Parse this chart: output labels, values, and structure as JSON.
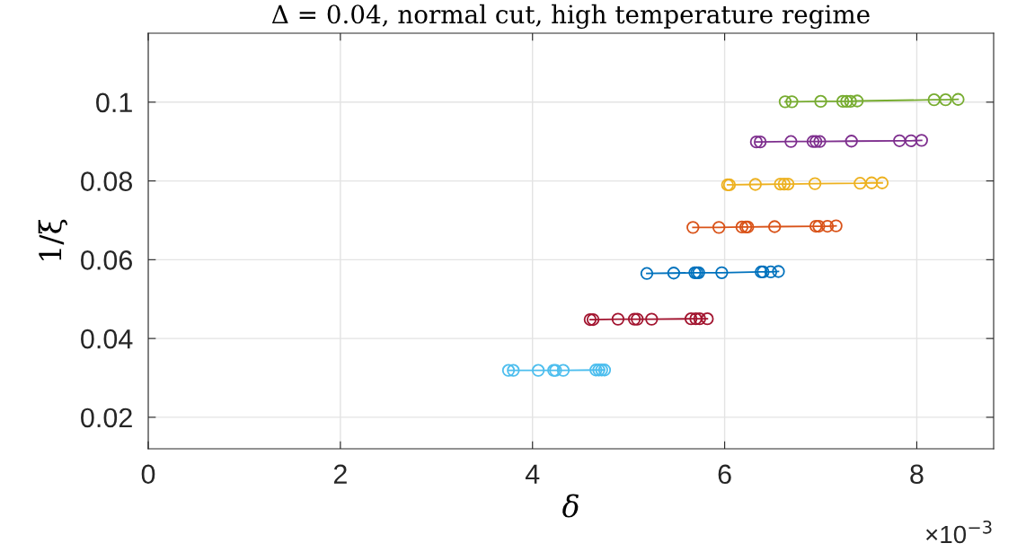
{
  "chart_data": {
    "type": "line",
    "title": "Δ = 0.04, normal cut, high temperature regime",
    "xlabel": "δ",
    "ylabel": "1/ξ",
    "marker": "circle",
    "line_style": "solid",
    "grid": true,
    "xlim": [
      0,
      8.8
    ],
    "xticks": [
      0,
      2,
      4,
      6,
      8
    ],
    "ylim": [
      0.012,
      0.1175
    ],
    "yticks": [
      0.02,
      0.04,
      0.06,
      0.08,
      0.1
    ],
    "annotations": [
      "×10$^{−3}$"
    ],
    "series": [
      {
        "color": "#4dbeee",
        "x": [
          3.75,
          3.8,
          4.06,
          4.22,
          4.24,
          4.32,
          4.66,
          4.69,
          4.72,
          4.75
        ],
        "values": [
          0.0319,
          0.0319,
          0.0319,
          0.0319,
          0.0319,
          0.0319,
          0.032,
          0.032,
          0.032,
          0.032
        ]
      },
      {
        "color": "#a2142f",
        "x": [
          4.6,
          4.63,
          4.89,
          5.06,
          5.09,
          5.24,
          5.65,
          5.7,
          5.74,
          5.82
        ],
        "values": [
          0.0448,
          0.0448,
          0.0449,
          0.0449,
          0.0449,
          0.0449,
          0.045,
          0.045,
          0.045,
          0.045
        ]
      },
      {
        "color": "#0072bd",
        "x": [
          5.19,
          5.47,
          5.69,
          5.71,
          5.73,
          5.97,
          6.38,
          6.4,
          6.48,
          6.56
        ],
        "values": [
          0.0565,
          0.0566,
          0.0567,
          0.0567,
          0.0567,
          0.0567,
          0.0569,
          0.0569,
          0.0569,
          0.057
        ]
      },
      {
        "color": "#d95319",
        "x": [
          5.67,
          5.94,
          6.18,
          6.22,
          6.24,
          6.52,
          6.95,
          6.98,
          7.07,
          7.16
        ],
        "values": [
          0.0682,
          0.0682,
          0.0683,
          0.0683,
          0.0683,
          0.0684,
          0.0685,
          0.0685,
          0.0685,
          0.0686
        ]
      },
      {
        "color": "#edb120",
        "x": [
          6.03,
          6.05,
          6.32,
          6.58,
          6.62,
          6.66,
          6.94,
          7.41,
          7.53,
          7.64
        ],
        "values": [
          0.079,
          0.079,
          0.0791,
          0.0792,
          0.0792,
          0.0792,
          0.0793,
          0.0794,
          0.0795,
          0.0795
        ]
      },
      {
        "color": "#7e2f8e",
        "x": [
          6.33,
          6.37,
          6.69,
          6.92,
          6.95,
          6.99,
          7.32,
          7.82,
          7.94,
          8.05
        ],
        "values": [
          0.0899,
          0.0899,
          0.09,
          0.09,
          0.09,
          0.09,
          0.0901,
          0.0902,
          0.0902,
          0.0903
        ]
      },
      {
        "color": "#77ac30",
        "x": [
          6.63,
          6.7,
          7.0,
          7.23,
          7.27,
          7.31,
          7.38,
          8.18,
          8.3,
          8.43
        ],
        "values": [
          0.1001,
          0.1001,
          0.1002,
          0.1002,
          0.1002,
          0.1002,
          0.1003,
          0.1006,
          0.1006,
          0.1007
        ]
      }
    ]
  }
}
